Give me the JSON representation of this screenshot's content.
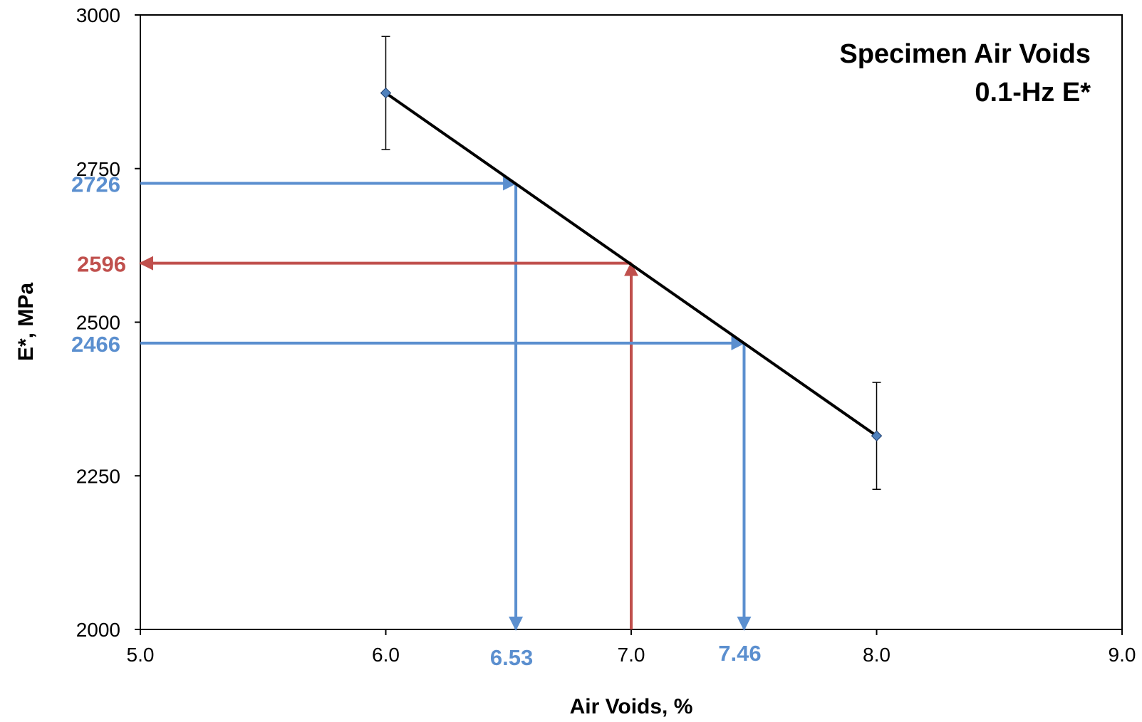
{
  "chart_data": {
    "type": "line",
    "title": "Specimen Air Voids",
    "subtitle": "0.1-Hz E*",
    "xlabel": "Air Voids, %",
    "ylabel": "E*, MPa",
    "xlim": [
      5.0,
      9.0
    ],
    "ylim": [
      2000,
      3000
    ],
    "x_ticks": [
      "5.0",
      "6.0",
      "7.0",
      "8.0",
      "9.0"
    ],
    "y_ticks": [
      "2000",
      "2250",
      "2500",
      "2750",
      "3000"
    ],
    "grid": false,
    "legend": "none",
    "series": [
      {
        "x": [
          6.0,
          8.0
        ],
        "y": [
          2873,
          2315
        ],
        "error": [
          92,
          87
        ],
        "line_color": "#000000",
        "marker_color": "#4F81BD",
        "marker": "diamond"
      }
    ],
    "annotations": [
      {
        "kind": "horizontal",
        "y": 2726,
        "x_from": 5.0,
        "x_to": 6.53,
        "arrow_at": "end",
        "label": "2726",
        "color": "#5B8FCF"
      },
      {
        "kind": "vertical",
        "x": 6.53,
        "y_from": 2726,
        "y_to": 2000,
        "arrow_at": "end",
        "label": "6.53",
        "color": "#5B8FCF"
      },
      {
        "kind": "vertical",
        "x": 7.0,
        "y_from": 2000,
        "y_to": 2596,
        "arrow_at": "end",
        "label": "7.0",
        "color": "#C0504D"
      },
      {
        "kind": "horizontal",
        "y": 2596,
        "x_from": 7.0,
        "x_to": 5.0,
        "arrow_at": "end",
        "label": "2596",
        "color": "#C0504D"
      },
      {
        "kind": "horizontal",
        "y": 2466,
        "x_from": 5.0,
        "x_to": 7.46,
        "arrow_at": "end",
        "label": "2466",
        "color": "#5B8FCF"
      },
      {
        "kind": "vertical",
        "x": 7.46,
        "y_from": 2466,
        "y_to": 2000,
        "arrow_at": "end",
        "label": "7.46",
        "color": "#5B8FCF"
      }
    ]
  }
}
